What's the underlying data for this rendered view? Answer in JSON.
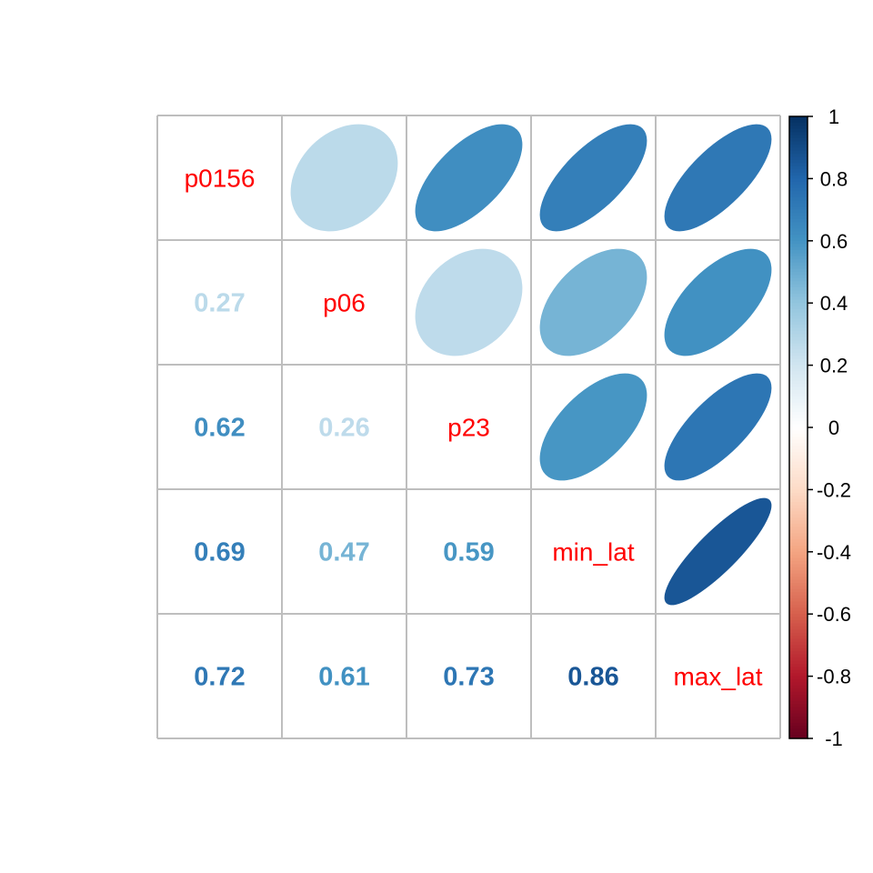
{
  "chart_data": {
    "type": "heatmap",
    "title": "",
    "variables": [
      "p0156",
      "p06",
      "p23",
      "min_lat",
      "max_lat"
    ],
    "matrix": [
      [
        1.0,
        0.27,
        0.62,
        0.69,
        0.72
      ],
      [
        0.27,
        1.0,
        0.26,
        0.47,
        0.61
      ],
      [
        0.62,
        0.26,
        1.0,
        0.59,
        0.73
      ],
      [
        0.69,
        0.47,
        0.59,
        1.0,
        0.86
      ],
      [
        0.72,
        0.61,
        0.73,
        0.86,
        1.0
      ]
    ],
    "lower_triangle": "number",
    "upper_triangle": "ellipse",
    "diagonal": "variable-name",
    "colorbar": {
      "range": [
        -1,
        1
      ],
      "ticks": [
        "1",
        "0.8",
        "0.6",
        "0.4",
        "0.2",
        "0",
        "-0.2",
        "-0.4",
        "-0.6",
        "-0.8",
        "-1"
      ],
      "placement": "right"
    },
    "colors": {
      "diagonal_text": "#ff0000",
      "grid": "#bebebe",
      "palette": [
        "#67001f",
        "#b2182b",
        "#d6604d",
        "#f4a582",
        "#fddbc7",
        "#ffffff",
        "#d1e5f0",
        "#92c5de",
        "#4393c3",
        "#2166ac",
        "#053061"
      ]
    }
  }
}
